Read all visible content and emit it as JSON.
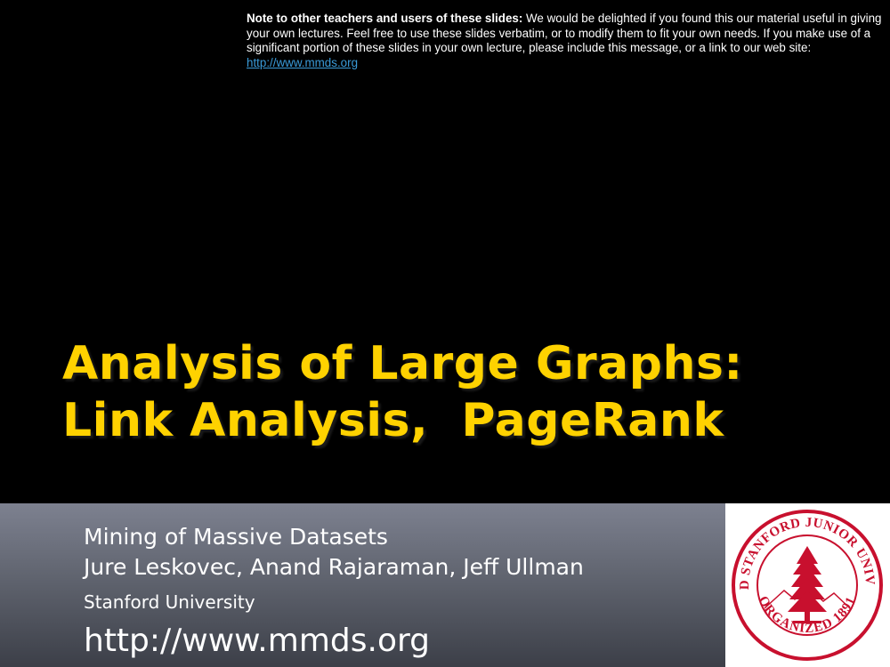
{
  "note": {
    "bold_lead": "Note to other teachers and users of these slides:",
    "body": " We would be delighted if you found this our material useful in giving your own lectures. Feel free to use these slides verbatim, or to modify them to fit your own needs. If you make use of a significant portion of these slides in your own lecture, please include this message, or a link to our web site: ",
    "link_text": "http://www.mmds.org"
  },
  "title": {
    "line1": "Analysis of Large Graphs:",
    "line2": "Link Analysis,  PageRank"
  },
  "subtitle": {
    "course": "Mining of Massive Datasets",
    "authors": "Jure Leskovec, Anand Rajaraman, Jeff Ullman",
    "institution": "Stanford University",
    "url": "http://www.mmds.org"
  },
  "seal": {
    "top_text": "LELAND STANFORD JUNIOR UNIVERSITY",
    "bottom_text": "ORGANIZED 1891"
  },
  "colors": {
    "title": "#ffd200",
    "seal": "#c8102e",
    "link": "#3a9bd9"
  }
}
